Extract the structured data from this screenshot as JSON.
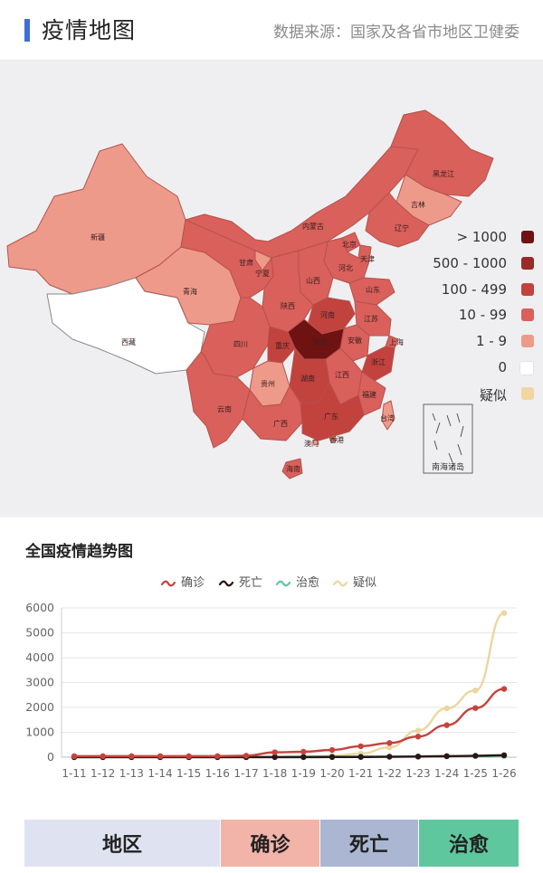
{
  "header": {
    "title": "疫情地图",
    "source": "数据来源：国家及各省市地区卫健委"
  },
  "map": {
    "legend": [
      {
        "label": "> 1000",
        "color": "#6e1212"
      },
      {
        "label": "500 - 1000",
        "color": "#9b2a28"
      },
      {
        "label": "100 - 499",
        "color": "#c2423e"
      },
      {
        "label": "10 - 99",
        "color": "#d9605b"
      },
      {
        "label": "1 - 9",
        "color": "#ee9a8a"
      },
      {
        "label": "0",
        "color": "#ffffff"
      },
      {
        "label": "疑似",
        "color": "#f2d6a0"
      }
    ],
    "regions": [
      {
        "name": "新疆",
        "bucket": "1 - 9"
      },
      {
        "name": "西藏",
        "bucket": "0"
      },
      {
        "name": "青海",
        "bucket": "1 - 9"
      },
      {
        "name": "甘肃",
        "bucket": "10 - 99"
      },
      {
        "name": "宁夏",
        "bucket": "1 - 9"
      },
      {
        "name": "内蒙古",
        "bucket": "10 - 99"
      },
      {
        "name": "黑龙江",
        "bucket": "10 - 99"
      },
      {
        "name": "吉林",
        "bucket": "1 - 9"
      },
      {
        "name": "辽宁",
        "bucket": "10 - 99"
      },
      {
        "name": "北京",
        "bucket": "10 - 99"
      },
      {
        "name": "天津",
        "bucket": "10 - 99"
      },
      {
        "name": "河北",
        "bucket": "10 - 99"
      },
      {
        "name": "山西",
        "bucket": "10 - 99"
      },
      {
        "name": "山东",
        "bucket": "10 - 99"
      },
      {
        "name": "陕西",
        "bucket": "10 - 99"
      },
      {
        "name": "河南",
        "bucket": "100 - 499"
      },
      {
        "name": "江苏",
        "bucket": "10 - 99"
      },
      {
        "name": "安徽",
        "bucket": "10 - 99"
      },
      {
        "name": "上海",
        "bucket": "10 - 99"
      },
      {
        "name": "四川",
        "bucket": "10 - 99"
      },
      {
        "name": "重庆",
        "bucket": "100 - 499"
      },
      {
        "name": "湖北",
        "bucket": "> 1000"
      },
      {
        "name": "浙江",
        "bucket": "100 - 499"
      },
      {
        "name": "湖南",
        "bucket": "100 - 499"
      },
      {
        "name": "江西",
        "bucket": "10 - 99"
      },
      {
        "name": "福建",
        "bucket": "10 - 99"
      },
      {
        "name": "贵州",
        "bucket": "1 - 9"
      },
      {
        "name": "云南",
        "bucket": "10 - 99"
      },
      {
        "name": "广西",
        "bucket": "10 - 99"
      },
      {
        "name": "广东",
        "bucket": "100 - 499"
      },
      {
        "name": "台湾",
        "bucket": "1 - 9"
      },
      {
        "name": "香港",
        "bucket": "1 - 9"
      },
      {
        "name": "澳门",
        "bucket": "1 - 9"
      },
      {
        "name": "海南",
        "bucket": "10 - 99"
      }
    ],
    "inset_label": "南海诸岛"
  },
  "trend": {
    "title": "全国疫情趋势图"
  },
  "chart_data": {
    "type": "line",
    "title": "全国疫情趋势图",
    "x": [
      "1-11",
      "1-12",
      "1-13",
      "1-14",
      "1-15",
      "1-16",
      "1-17",
      "1-18",
      "1-19",
      "1-20",
      "1-21",
      "1-22",
      "1-23",
      "1-24",
      "1-25",
      "1-26"
    ],
    "ylim": [
      0,
      6000
    ],
    "yticks": [
      0,
      1000,
      2000,
      3000,
      4000,
      5000,
      6000
    ],
    "grid": true,
    "legend_position": "top",
    "series": [
      {
        "name": "确诊",
        "color": "#c6433c",
        "values": [
          41,
          41,
          41,
          41,
          41,
          45,
          62,
          198,
          218,
          291,
          440,
          571,
          830,
          1287,
          1975,
          2744
        ]
      },
      {
        "name": "死亡",
        "color": "#2b1515",
        "values": [
          1,
          1,
          1,
          1,
          2,
          2,
          2,
          3,
          3,
          6,
          9,
          17,
          25,
          41,
          56,
          80
        ]
      },
      {
        "name": "治愈",
        "color": "#5fc79e",
        "values": [
          2,
          6,
          7,
          7,
          12,
          12,
          12,
          17,
          25,
          25,
          25,
          28,
          34,
          38,
          49,
          51
        ]
      },
      {
        "name": "疑似",
        "color": "#ecd69e",
        "values": [
          0,
          0,
          0,
          0,
          0,
          0,
          0,
          0,
          0,
          54,
          149,
          393,
          1072,
          1965,
          2684,
          5794
        ]
      }
    ]
  },
  "table": {
    "headers": [
      {
        "label": "地区",
        "bg": "#dfe3f1"
      },
      {
        "label": "确诊",
        "bg": "#f2b3a8"
      },
      {
        "label": "死亡",
        "bg": "#aab6d2"
      },
      {
        "label": "治愈",
        "bg": "#5fc79e"
      }
    ]
  }
}
